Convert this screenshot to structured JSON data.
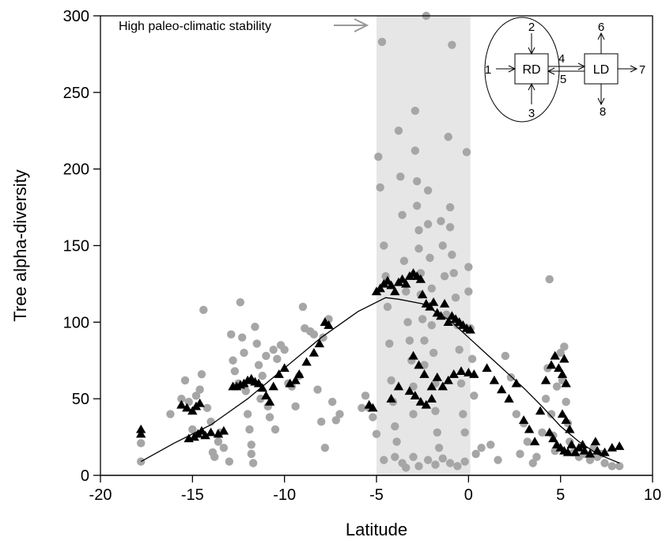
{
  "chart_data": {
    "type": "scatter",
    "title": "",
    "xlabel": "Latitude",
    "ylabel": "Tree alpha-diversity",
    "xlim": [
      -20,
      10
    ],
    "ylim": [
      0,
      300
    ],
    "xticks": [
      "-20",
      "-15",
      "-10",
      "-5",
      "0",
      "5",
      "10"
    ],
    "xtick_values": [
      -20,
      -15,
      -10,
      -5,
      0,
      5,
      10
    ],
    "yticks": [
      "0",
      "50",
      "100",
      "150",
      "200",
      "250",
      "300"
    ],
    "ytick_values": [
      0,
      50,
      100,
      150,
      200,
      250,
      300
    ],
    "grid": false,
    "shaded_region": {
      "x": [
        -5,
        0.1
      ],
      "color": "#e6e6e6"
    },
    "annotation": {
      "text": "High paleo-climatic stability",
      "arrow_color": "#999999"
    },
    "colors": {
      "observed": "#a6a6a6",
      "predicted": "#000000",
      "fit": "#000000"
    },
    "series": [
      {
        "role": "observed",
        "marker": "circle",
        "points": [
          [
            -17.8,
            21
          ],
          [
            -17.8,
            9
          ],
          [
            -16.2,
            40
          ],
          [
            -15.6,
            50
          ],
          [
            -15.4,
            62
          ],
          [
            -15.2,
            48
          ],
          [
            -15.0,
            30
          ],
          [
            -14.8,
            52
          ],
          [
            -14.6,
            56
          ],
          [
            -14.5,
            66
          ],
          [
            -14.4,
            108
          ],
          [
            -14.2,
            44
          ],
          [
            -14.0,
            35
          ],
          [
            -13.9,
            15
          ],
          [
            -13.8,
            12
          ],
          [
            -13.6,
            22
          ],
          [
            -13.5,
            28
          ],
          [
            -13.3,
            18
          ],
          [
            -13.0,
            9
          ],
          [
            -12.9,
            92
          ],
          [
            -12.8,
            75
          ],
          [
            -12.7,
            68
          ],
          [
            -12.5,
            60
          ],
          [
            -12.4,
            113
          ],
          [
            -12.3,
            90
          ],
          [
            -12.2,
            80
          ],
          [
            -12.1,
            55
          ],
          [
            -12.0,
            40
          ],
          [
            -11.9,
            30
          ],
          [
            -11.8,
            20
          ],
          [
            -11.8,
            14
          ],
          [
            -11.7,
            8
          ],
          [
            -11.6,
            97
          ],
          [
            -11.5,
            86
          ],
          [
            -11.4,
            72
          ],
          [
            -11.3,
            50
          ],
          [
            -11.2,
            65
          ],
          [
            -11.0,
            78
          ],
          [
            -10.9,
            45
          ],
          [
            -10.8,
            38
          ],
          [
            -10.6,
            82
          ],
          [
            -10.5,
            30
          ],
          [
            -10.4,
            76
          ],
          [
            -10.2,
            85
          ],
          [
            -10.0,
            82
          ],
          [
            -9.8,
            60
          ],
          [
            -9.6,
            58
          ],
          [
            -9.4,
            45
          ],
          [
            -9.2,
            65
          ],
          [
            -9.0,
            110
          ],
          [
            -8.9,
            96
          ],
          [
            -8.6,
            94
          ],
          [
            -8.4,
            92
          ],
          [
            -8.2,
            56
          ],
          [
            -8.0,
            35
          ],
          [
            -7.9,
            90
          ],
          [
            -7.8,
            18
          ],
          [
            -7.6,
            102
          ],
          [
            -7.4,
            48
          ],
          [
            -7.2,
            36
          ],
          [
            -7.0,
            40
          ],
          [
            -5.8,
            44
          ],
          [
            -5.6,
            52
          ],
          [
            -5.4,
            44
          ],
          [
            -5.2,
            38
          ],
          [
            -5.0,
            27
          ],
          [
            -4.9,
            208
          ],
          [
            -4.8,
            188
          ],
          [
            -4.7,
            283
          ],
          [
            -4.6,
            150
          ],
          [
            -4.5,
            130
          ],
          [
            -4.4,
            110
          ],
          [
            -4.3,
            86
          ],
          [
            -4.2,
            62
          ],
          [
            -4.1,
            48
          ],
          [
            -4.0,
            32
          ],
          [
            -3.9,
            22
          ],
          [
            -3.8,
            225
          ],
          [
            -3.7,
            195
          ],
          [
            -3.6,
            170
          ],
          [
            -3.5,
            140
          ],
          [
            -3.4,
            120
          ],
          [
            -3.3,
            100
          ],
          [
            -3.2,
            88
          ],
          [
            -3.1,
            75
          ],
          [
            -3.0,
            58
          ],
          [
            -3.0,
            40
          ],
          [
            -2.9,
            238
          ],
          [
            -2.9,
            212
          ],
          [
            -2.8,
            192
          ],
          [
            -2.8,
            176
          ],
          [
            -2.7,
            160
          ],
          [
            -2.7,
            148
          ],
          [
            -2.6,
            132
          ],
          [
            -2.6,
            118
          ],
          [
            -2.5,
            102
          ],
          [
            -2.4,
            88
          ],
          [
            -2.4,
            72
          ],
          [
            -2.3,
            300
          ],
          [
            -2.2,
            186
          ],
          [
            -2.2,
            164
          ],
          [
            -2.1,
            142
          ],
          [
            -2.0,
            122
          ],
          [
            -2.0,
            98
          ],
          [
            -1.9,
            80
          ],
          [
            -1.8,
            60
          ],
          [
            -1.8,
            42
          ],
          [
            -1.7,
            28
          ],
          [
            -1.6,
            18
          ],
          [
            -1.5,
            166
          ],
          [
            -1.4,
            150
          ],
          [
            -1.3,
            130
          ],
          [
            -1.2,
            105
          ],
          [
            -1.1,
            221
          ],
          [
            -1.0,
            175
          ],
          [
            -1.0,
            162
          ],
          [
            -0.9,
            281
          ],
          [
            -0.9,
            144
          ],
          [
            -0.8,
            132
          ],
          [
            -0.7,
            116
          ],
          [
            -0.6,
            98
          ],
          [
            -0.5,
            82
          ],
          [
            -0.4,
            60
          ],
          [
            -0.3,
            40
          ],
          [
            -0.2,
            28
          ],
          [
            -0.1,
            211
          ],
          [
            0.0,
            136
          ],
          [
            0.0,
            120
          ],
          [
            0.1,
            96
          ],
          [
            0.2,
            76
          ],
          [
            0.3,
            52
          ],
          [
            -4.6,
            10
          ],
          [
            -4.0,
            12
          ],
          [
            -3.6,
            8
          ],
          [
            -3.4,
            5
          ],
          [
            -3.0,
            12
          ],
          [
            -2.7,
            6
          ],
          [
            -2.2,
            10
          ],
          [
            -1.8,
            7
          ],
          [
            -1.4,
            11
          ],
          [
            -1.0,
            8
          ],
          [
            -0.6,
            6
          ],
          [
            -0.2,
            9
          ],
          [
            0.4,
            14
          ],
          [
            0.7,
            18
          ],
          [
            1.2,
            20
          ],
          [
            1.6,
            10
          ],
          [
            2.0,
            78
          ],
          [
            2.3,
            64
          ],
          [
            2.6,
            40
          ],
          [
            2.8,
            14
          ],
          [
            3.0,
            34
          ],
          [
            3.2,
            22
          ],
          [
            3.5,
            8
          ],
          [
            3.7,
            12
          ],
          [
            4.0,
            28
          ],
          [
            4.2,
            50
          ],
          [
            4.3,
            70
          ],
          [
            4.4,
            128
          ],
          [
            4.5,
            40
          ],
          [
            4.6,
            26
          ],
          [
            4.7,
            16
          ],
          [
            4.8,
            58
          ],
          [
            5.0,
            80
          ],
          [
            5.1,
            62
          ],
          [
            5.2,
            84
          ],
          [
            5.3,
            48
          ],
          [
            5.4,
            34
          ],
          [
            5.5,
            22
          ],
          [
            5.7,
            15
          ],
          [
            6.0,
            12
          ],
          [
            6.3,
            14
          ],
          [
            6.6,
            10
          ],
          [
            7.0,
            12
          ],
          [
            7.4,
            8
          ],
          [
            7.8,
            6
          ],
          [
            8.2,
            6
          ],
          [
            6.8,
            18
          ],
          [
            7.2,
            14
          ]
        ]
      },
      {
        "role": "predicted",
        "marker": "triangle",
        "points": [
          [
            -17.8,
            30
          ],
          [
            -17.8,
            27
          ],
          [
            -15.6,
            46
          ],
          [
            -15.3,
            44
          ],
          [
            -15.0,
            42
          ],
          [
            -14.8,
            45
          ],
          [
            -14.6,
            47
          ],
          [
            -15.2,
            24
          ],
          [
            -14.9,
            25
          ],
          [
            -14.7,
            27
          ],
          [
            -14.5,
            29
          ],
          [
            -14.3,
            26
          ],
          [
            -14.0,
            28
          ],
          [
            -13.6,
            27
          ],
          [
            -13.3,
            29
          ],
          [
            -12.8,
            58
          ],
          [
            -12.6,
            58
          ],
          [
            -12.4,
            59
          ],
          [
            -12.2,
            60
          ],
          [
            -12.0,
            62
          ],
          [
            -11.8,
            63
          ],
          [
            -11.6,
            61
          ],
          [
            -11.4,
            60
          ],
          [
            -11.2,
            57
          ],
          [
            -11.0,
            52
          ],
          [
            -10.8,
            48
          ],
          [
            -10.6,
            58
          ],
          [
            -10.3,
            66
          ],
          [
            -10.0,
            70
          ],
          [
            -9.7,
            60
          ],
          [
            -9.4,
            62
          ],
          [
            -9.2,
            66
          ],
          [
            -8.8,
            74
          ],
          [
            -8.4,
            80
          ],
          [
            -8.1,
            86
          ],
          [
            -7.8,
            100
          ],
          [
            -7.6,
            98
          ],
          [
            -5.4,
            46
          ],
          [
            -5.2,
            44
          ],
          [
            -5.0,
            120
          ],
          [
            -4.8,
            122
          ],
          [
            -4.6,
            125
          ],
          [
            -4.4,
            127
          ],
          [
            -4.2,
            124
          ],
          [
            -4.0,
            120
          ],
          [
            -3.8,
            126
          ],
          [
            -3.6,
            128
          ],
          [
            -3.4,
            125
          ],
          [
            -3.2,
            130
          ],
          [
            -3.0,
            132
          ],
          [
            -2.8,
            130
          ],
          [
            -2.6,
            128
          ],
          [
            -2.5,
            118
          ],
          [
            -2.3,
            112
          ],
          [
            -2.1,
            110
          ],
          [
            -1.9,
            113
          ],
          [
            -1.7,
            106
          ],
          [
            -1.5,
            104
          ],
          [
            -1.3,
            112
          ],
          [
            -1.1,
            100
          ],
          [
            -0.9,
            104
          ],
          [
            -0.7,
            102
          ],
          [
            -0.5,
            100
          ],
          [
            -0.3,
            98
          ],
          [
            -0.1,
            96
          ],
          [
            0.1,
            95
          ],
          [
            -3.0,
            78
          ],
          [
            -2.7,
            72
          ],
          [
            -2.4,
            66
          ],
          [
            -2.0,
            58
          ],
          [
            -1.7,
            64
          ],
          [
            -1.4,
            58
          ],
          [
            -1.1,
            62
          ],
          [
            -0.8,
            66
          ],
          [
            -0.4,
            68
          ],
          [
            0.0,
            67
          ],
          [
            0.3,
            66
          ],
          [
            -3.2,
            55
          ],
          [
            -2.9,
            52
          ],
          [
            -2.6,
            48
          ],
          [
            -2.3,
            46
          ],
          [
            -2.0,
            50
          ],
          [
            -3.8,
            58
          ],
          [
            -4.2,
            50
          ],
          [
            1.0,
            70
          ],
          [
            1.4,
            62
          ],
          [
            1.8,
            56
          ],
          [
            2.2,
            50
          ],
          [
            2.6,
            60
          ],
          [
            3.0,
            36
          ],
          [
            3.3,
            30
          ],
          [
            3.6,
            22
          ],
          [
            3.9,
            42
          ],
          [
            4.2,
            62
          ],
          [
            4.5,
            72
          ],
          [
            4.7,
            78
          ],
          [
            4.9,
            70
          ],
          [
            5.1,
            66
          ],
          [
            5.2,
            76
          ],
          [
            5.3,
            60
          ],
          [
            4.4,
            28
          ],
          [
            4.6,
            24
          ],
          [
            4.8,
            20
          ],
          [
            5.0,
            18
          ],
          [
            5.2,
            16
          ],
          [
            5.4,
            15
          ],
          [
            5.6,
            20
          ],
          [
            5.8,
            15
          ],
          [
            6.0,
            18
          ],
          [
            6.3,
            16
          ],
          [
            6.6,
            14
          ],
          [
            7.0,
            16
          ],
          [
            7.4,
            15
          ],
          [
            7.8,
            18
          ],
          [
            8.2,
            19
          ],
          [
            5.1,
            40
          ],
          [
            5.3,
            36
          ],
          [
            5.5,
            30
          ],
          [
            6.2,
            20
          ],
          [
            6.9,
            22
          ]
        ]
      },
      {
        "role": "fit",
        "marker": "line",
        "points": [
          [
            -17.8,
            9
          ],
          [
            -16,
            21
          ],
          [
            -14,
            33
          ],
          [
            -12,
            50
          ],
          [
            -10,
            70
          ],
          [
            -8,
            90
          ],
          [
            -6,
            107
          ],
          [
            -4.5,
            116
          ],
          [
            -3.8,
            115
          ],
          [
            -2.5,
            112
          ],
          [
            -1,
            101
          ],
          [
            0,
            90
          ],
          [
            1,
            79
          ],
          [
            2,
            68
          ],
          [
            3,
            57
          ],
          [
            4,
            45
          ],
          [
            5,
            32
          ],
          [
            6,
            22
          ],
          [
            7,
            14
          ],
          [
            8.2,
            8
          ]
        ]
      }
    ]
  },
  "inset": {
    "left_box": "RD",
    "right_box": "LD",
    "labels": [
      "1",
      "2",
      "3",
      "4",
      "5",
      "6",
      "7",
      "8"
    ]
  }
}
